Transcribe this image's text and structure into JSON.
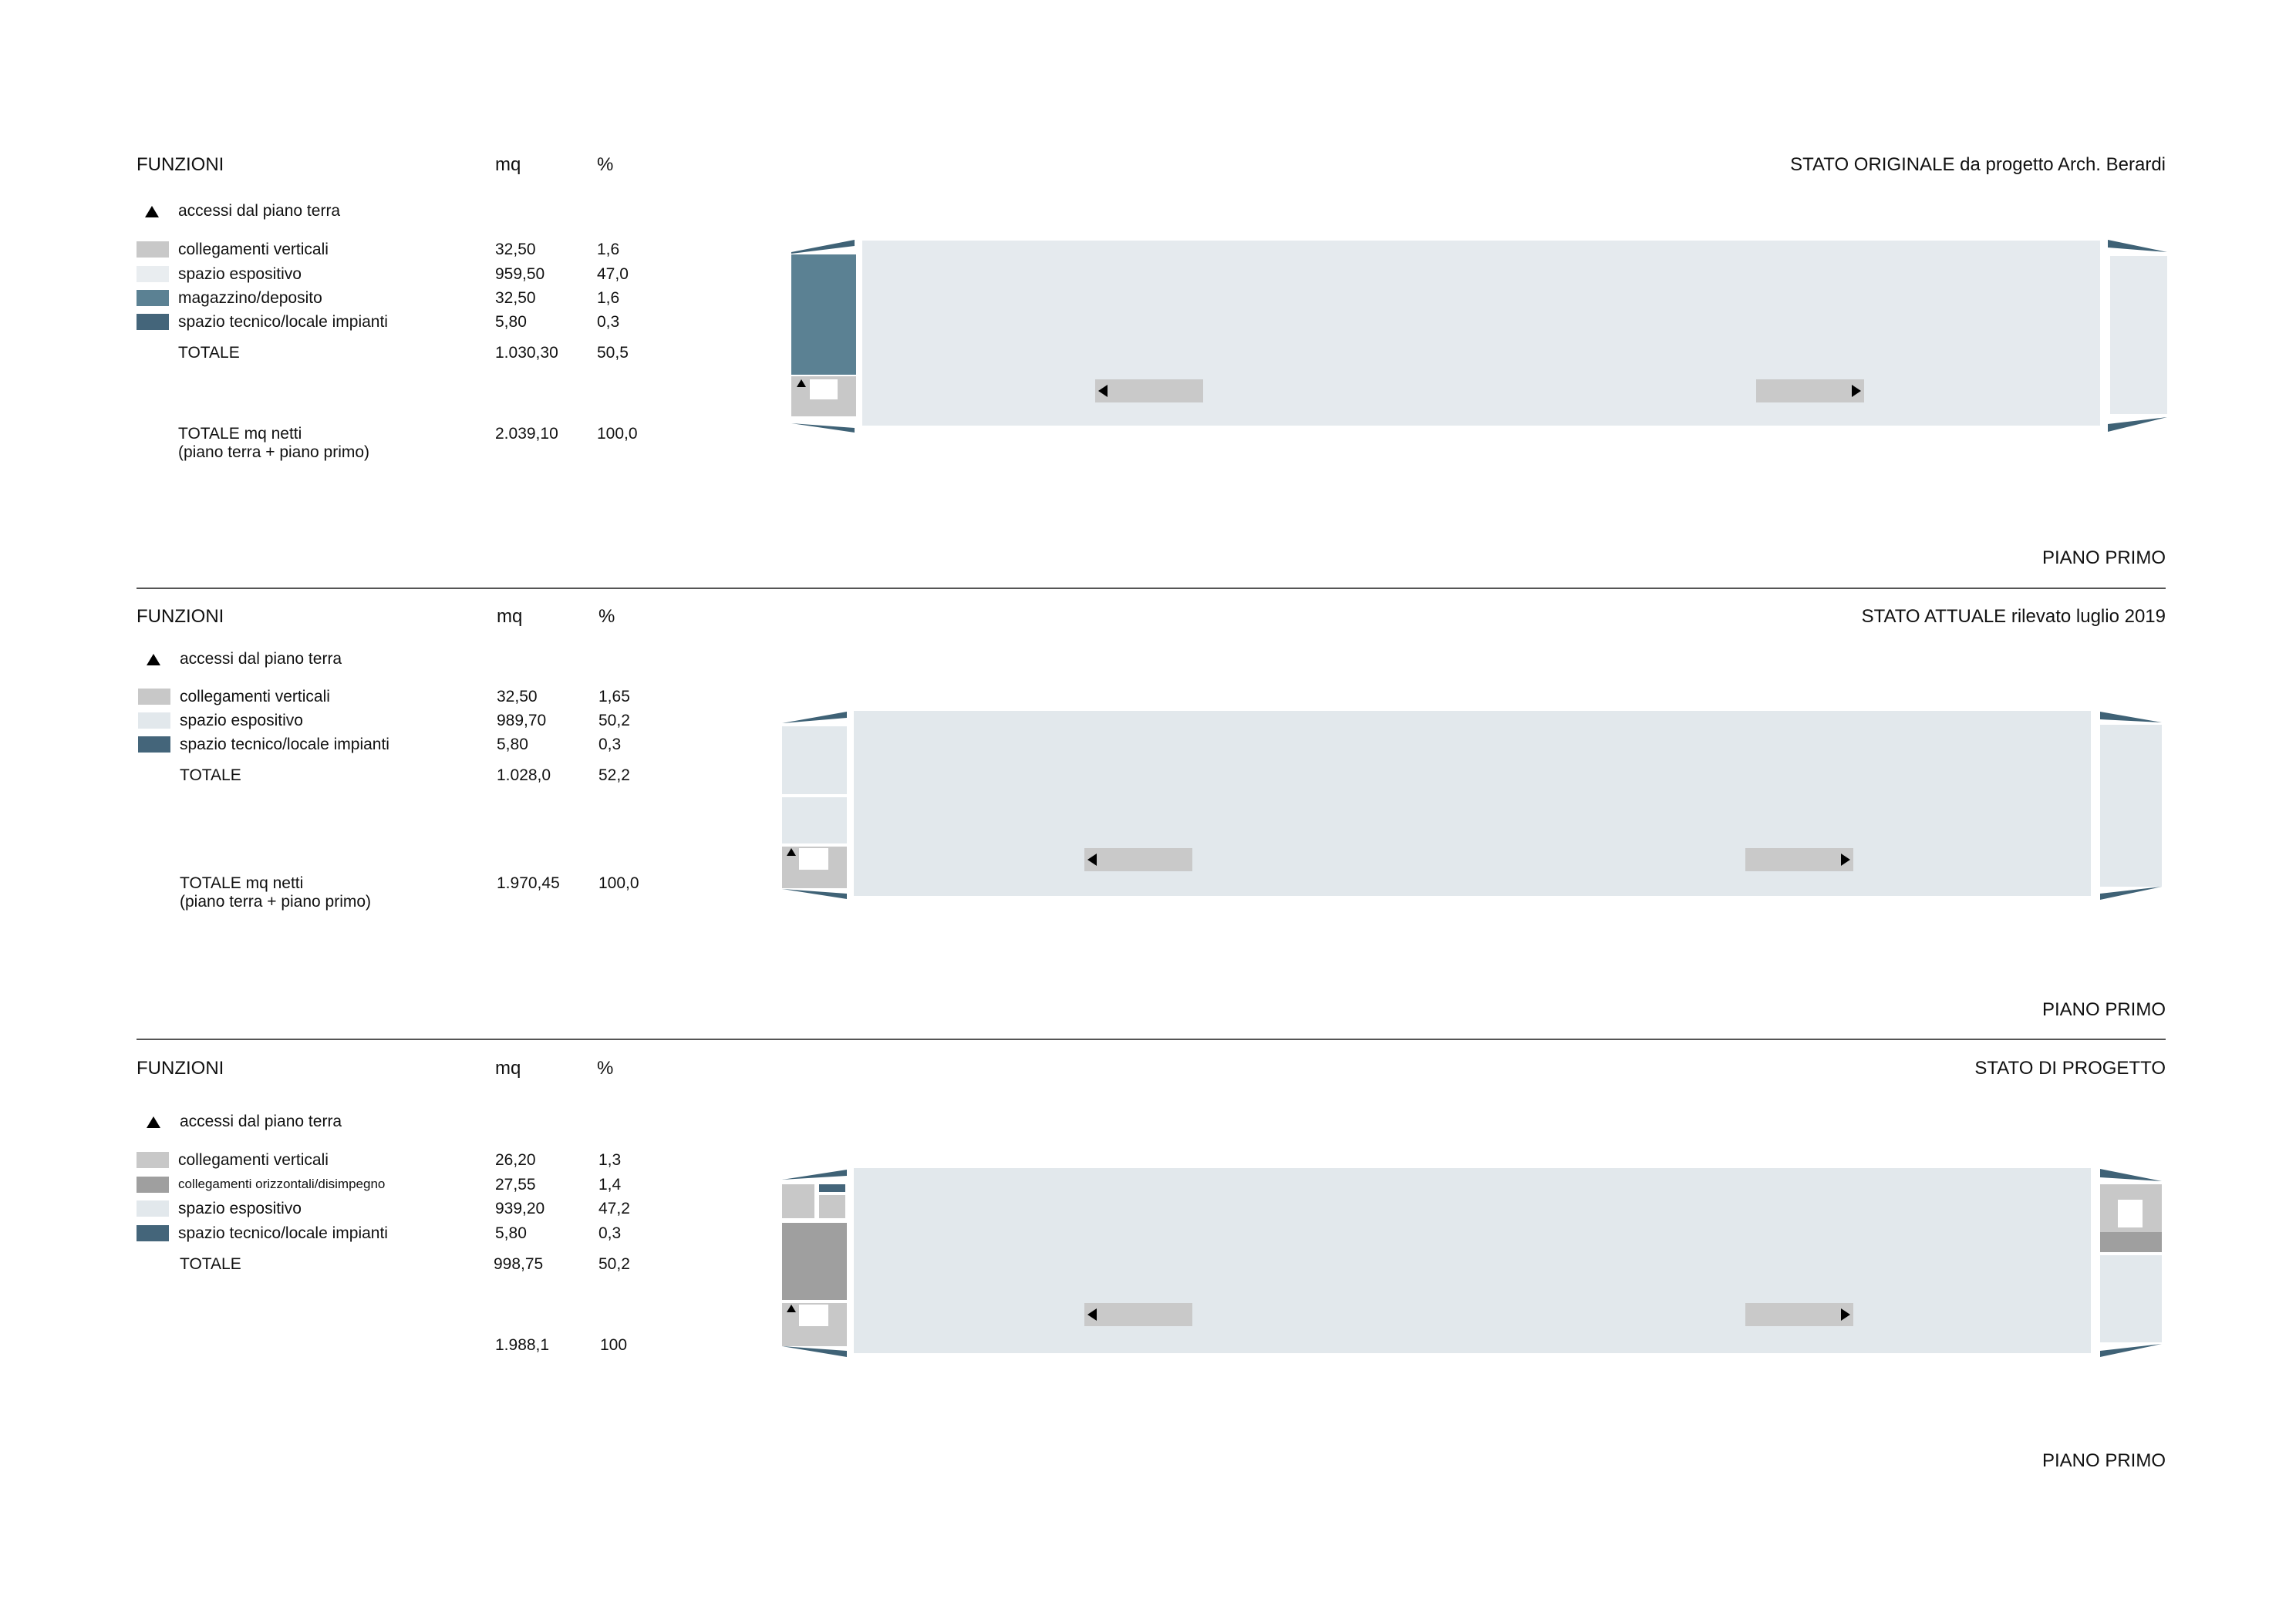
{
  "colors": {
    "collegamenti_verticali": "#c8c8c8",
    "collegamenti_orizzontali": "#9f9f9f",
    "spazio_espositivo": "#e2e8ec",
    "magazzino": "#5b8193",
    "spazio_tecnico": "#44657a",
    "arrow_bar": "#c9c9c9",
    "wedge": "#3f6276"
  },
  "sections": [
    {
      "headers": {
        "funzioni": "FUNZIONI",
        "mq": "mq",
        "pct": "%"
      },
      "title": "STATO ORIGINALE da progetto Arch. Berardi",
      "floor_label": "PIANO PRIMO",
      "access_label": "accessi dal piano terra",
      "rows": [
        {
          "label": "collegamenti verticali",
          "mq": "32,50",
          "pct": "1,6",
          "color": "#c8c8c8"
        },
        {
          "label": "spazio espositivo",
          "mq": "959,50",
          "pct": "47,0",
          "color": "#e2e8ec"
        },
        {
          "label": "magazzino/deposito",
          "mq": "32,50",
          "pct": "1,6",
          "color": "#5b8193"
        },
        {
          "label": "spazio tecnico/locale impianti",
          "mq": "5,80",
          "pct": "0,3",
          "color": "#44657a"
        }
      ],
      "totale": {
        "label": "TOTALE",
        "mq": "1.030,30",
        "pct": "50,5"
      },
      "totale_netti": {
        "label1": "TOTALE mq netti",
        "label2": "(piano terra  + piano primo)",
        "mq": "2.039,10",
        "pct": "100,0"
      }
    },
    {
      "headers": {
        "funzioni": "FUNZIONI",
        "mq": "mq",
        "pct": "%"
      },
      "title": "STATO ATTUALE rilevato luglio 2019",
      "floor_label": "PIANO PRIMO",
      "access_label": "accessi dal piano terra",
      "rows": [
        {
          "label": "collegamenti verticali",
          "mq": "32,50",
          "pct": "1,65",
          "color": "#c8c8c8"
        },
        {
          "label": "spazio espositivo",
          "mq": "989,70",
          "pct": "50,2",
          "color": "#e2e8ec"
        },
        {
          "label": "spazio tecnico/locale impianti",
          "mq": "5,80",
          "pct": "0,3",
          "color": "#44657a"
        }
      ],
      "totale": {
        "label": "TOTALE",
        "mq": "1.028,0",
        "pct": "52,2"
      },
      "totale_netti": {
        "label1": "TOTALE mq netti",
        "label2": "(piano terra  + piano primo)",
        "mq": "1.970,45",
        "pct": "100,0"
      }
    },
    {
      "headers": {
        "funzioni": "FUNZIONI",
        "mq": "mq",
        "pct": "%"
      },
      "title": "STATO DI PROGETTO",
      "floor_label": "PIANO PRIMO",
      "access_label": "accessi dal piano terra",
      "rows": [
        {
          "label": "collegamenti verticali",
          "mq": "26,20",
          "pct": "1,3",
          "color": "#c8c8c8"
        },
        {
          "label": "collegamenti orizzontali/disimpegno",
          "mq": "27,55",
          "pct": "1,4",
          "color": "#9f9f9f",
          "small": true
        },
        {
          "label": "spazio espositivo",
          "mq": "939,20",
          "pct": "47,2",
          "color": "#e2e8ec"
        },
        {
          "label": "spazio tecnico/locale impianti",
          "mq": "5,80",
          "pct": "0,3",
          "color": "#44657a"
        }
      ],
      "totale": {
        "label": "TOTALE",
        "mq": "998,75",
        "pct": "50,2"
      },
      "totale_netti": {
        "label1": "",
        "label2": "",
        "mq": "1.988,1",
        "pct": "100"
      }
    }
  ]
}
